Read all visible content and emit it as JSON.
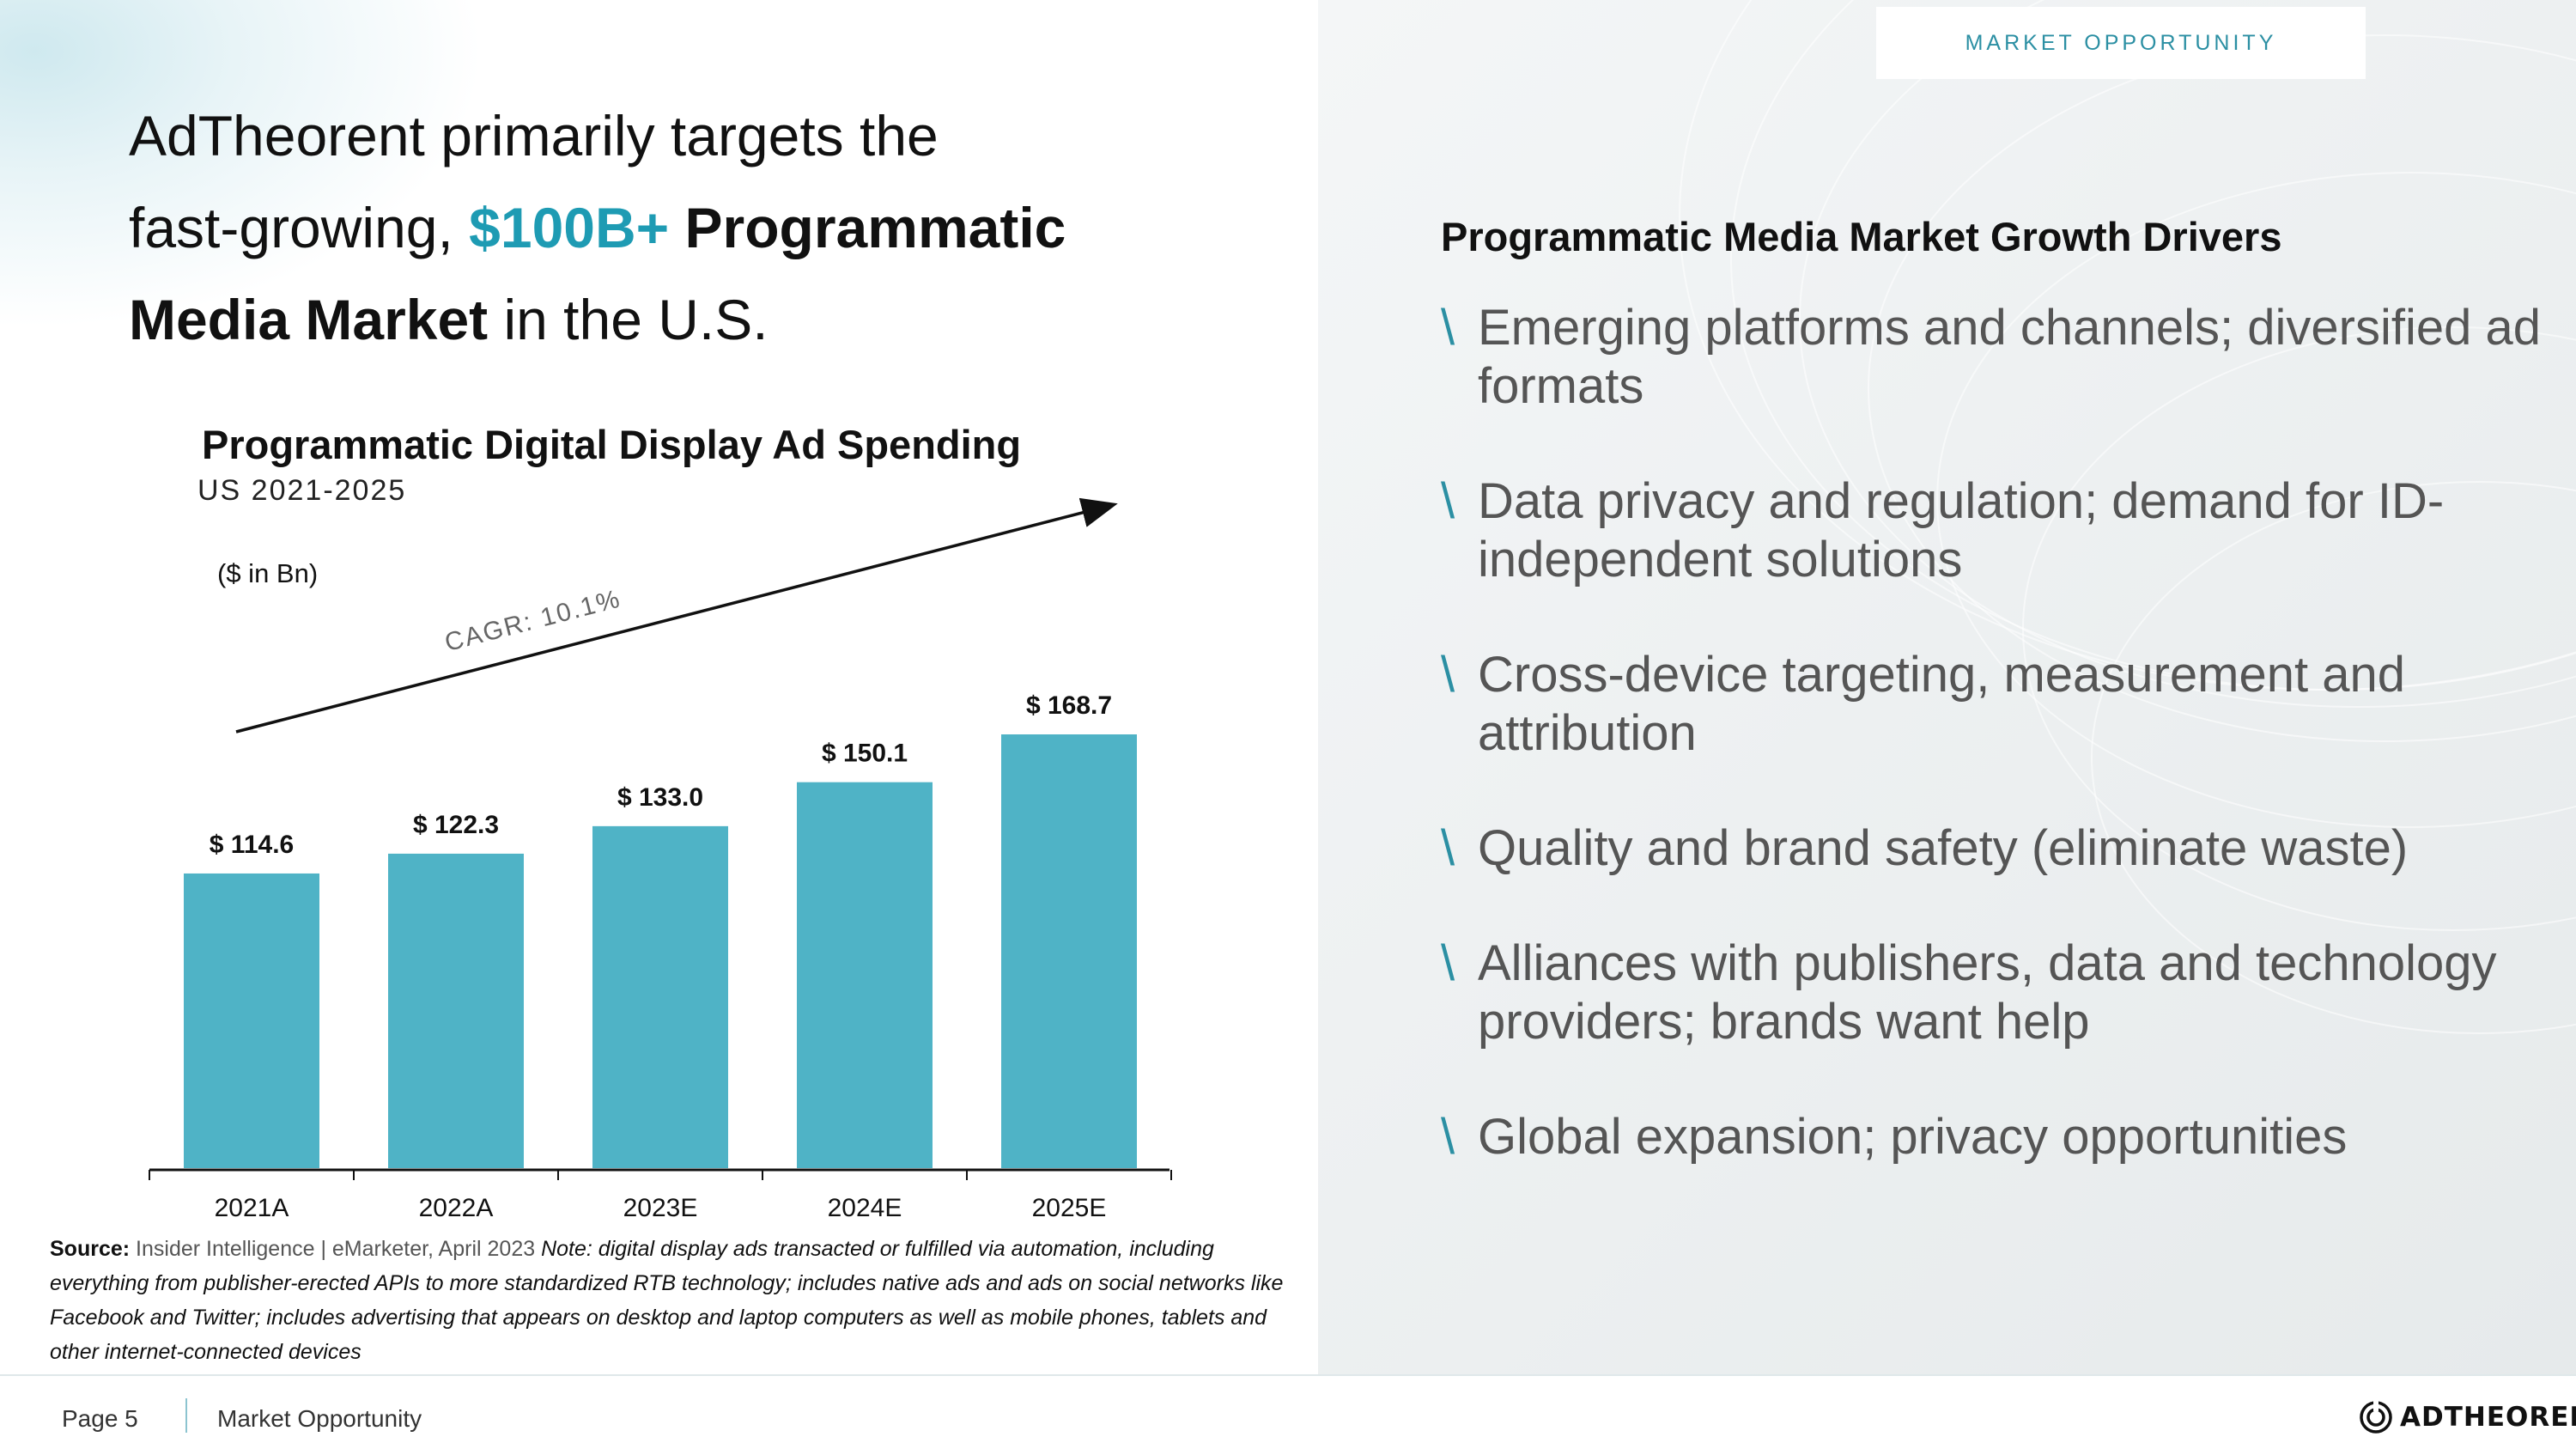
{
  "header": {
    "section_tag": "MARKET OPPORTUNITY"
  },
  "headline": {
    "line1": "AdTheorent primarily targets the",
    "line2_pre": "fast-growing, ",
    "line2_highlight": "$100B+",
    "line2_bold": " Programmatic",
    "line3_bold": "Media Market",
    "line3_post": " in the U.S."
  },
  "chart_data": {
    "type": "bar",
    "title": "Programmatic Digital Display Ad Spending",
    "subtitle": "US 2021-2025",
    "unit_label": "($ in Bn)",
    "categories": [
      "2021A",
      "2022A",
      "2023E",
      "2024E",
      "2025E"
    ],
    "values": [
      114.6,
      122.3,
      133.0,
      150.1,
      168.7
    ],
    "value_labels": [
      "$ 114.6",
      "$ 122.3",
      "$ 133.0",
      "$ 150.1",
      "$ 168.7"
    ],
    "annotation": "CAGR: 10.1%",
    "xlabel": "",
    "ylabel": "",
    "ylim": [
      0,
      168.7
    ],
    "bar_color": "#4fb3c6"
  },
  "source": {
    "label": "Source:",
    "text": " Insider Intelligence | eMarketer, April 2023",
    "note": "Note: digital display ads transacted or fulfilled via automation, including everything from publisher-erected APIs to more standardized RTB technology; includes native ads and ads on social networks like Facebook and Twitter; includes advertising that appears on desktop and laptop computers as well as mobile phones, tablets and other internet-connected devices"
  },
  "drivers": {
    "title": "Programmatic Media Market Growth Drivers",
    "bullet": "\\",
    "items": [
      "Emerging platforms and channels; diversified ad formats",
      "Data privacy and regulation; demand for ID-independent solutions",
      "Cross-device targeting, measurement and attribution",
      "Quality and brand safety (eliminate waste)",
      "Alliances with publishers, data and technology providers; brands want help",
      "Global expansion; privacy opportunities"
    ]
  },
  "footer": {
    "page": "Page 5",
    "section": "Market Opportunity",
    "logo_text": "ADTHEORENT",
    "logo_mark": "™"
  },
  "colors": {
    "accent": "#1e9bb3",
    "bar": "#4fb3c6",
    "bullet": "#2b8fa3"
  }
}
